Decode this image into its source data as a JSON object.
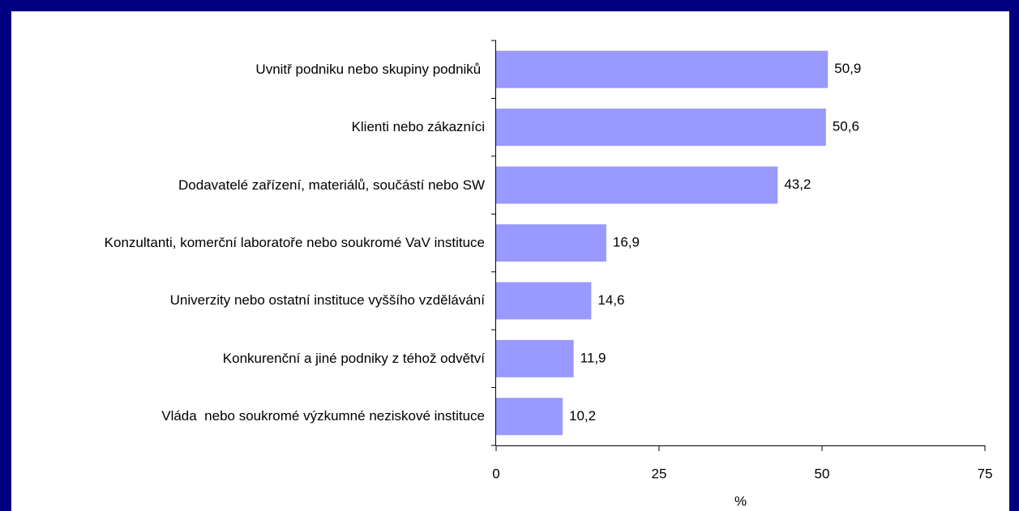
{
  "chart_data": {
    "type": "bar",
    "orientation": "horizontal",
    "categories": [
      "Uvnitř podniku nebo skupiny podniků ",
      "Klienti nebo zákazníci",
      "Dodavatelé zařízení, materiálů, součástí nebo SW",
      "Konzultanti, komerční laboratoře nebo soukromé VaV instituce",
      "Univerzity nebo ostatní instituce vyššího vzdělávání",
      "Konkurenční a jiné podniky z téhož odvětví",
      "Vláda  nebo soukromé výzkumné neziskové instituce"
    ],
    "values": [
      50.9,
      50.6,
      43.2,
      16.9,
      14.6,
      11.9,
      10.2
    ],
    "value_labels": [
      "50,9",
      "50,6",
      "43,2",
      "16,9",
      "14,6",
      "11,9",
      "10,2"
    ],
    "color": "#9999ff",
    "xlabel": "%",
    "xlim": [
      0,
      75
    ],
    "xticks": [
      0,
      25,
      50,
      75
    ]
  }
}
